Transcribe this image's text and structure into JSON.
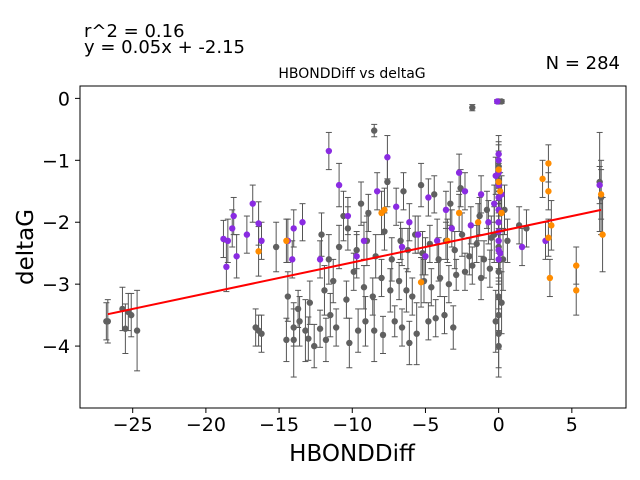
{
  "chart_data": {
    "type": "scatter",
    "title": "HBONDDiff vs deltaG",
    "xlabel": "HBONDDiff",
    "ylabel": "deltaG",
    "xlim": [
      -28.6,
      8.7
    ],
    "ylim": [
      -5.0,
      0.2
    ],
    "x_ticks": [
      -25,
      -20,
      -15,
      -10,
      -5,
      0,
      5
    ],
    "y_ticks": [
      0,
      -1,
      -2,
      -3,
      -4
    ],
    "x_tick_labels": [
      "−25",
      "−20",
      "−15",
      "−10",
      "−5",
      "0",
      "5"
    ],
    "y_tick_labels": [
      "0",
      "−1",
      "−2",
      "−3",
      "−4"
    ],
    "annotations": {
      "r2": "r^2 = 0.16",
      "equation": "y = 0.05x + -2.15",
      "n": "N = 284"
    },
    "fit_line": {
      "slope": 0.05,
      "intercept": -2.15,
      "x_range": [
        -26.7,
        7.0
      ],
      "color": "#ff0000"
    },
    "grid": false,
    "colors": {
      "grey": "#606060",
      "purple": "#8a2be2",
      "orange": "#ff8c00",
      "errorbar": "#555555"
    },
    "series": [
      {
        "color_key": "grey",
        "points": [
          [
            -26.8,
            -3.6,
            0.3
          ],
          [
            -26.7,
            -3.6,
            0.35
          ],
          [
            -25.7,
            -3.4,
            0.35
          ],
          [
            -25.3,
            -3.45,
            0.3
          ],
          [
            -25.1,
            -3.5,
            0.35
          ],
          [
            -24.7,
            -3.75,
            0.65
          ],
          [
            -25.5,
            -3.72,
            0.4
          ],
          [
            -14.0,
            -3.9,
            0.6
          ],
          [
            -16.2,
            -3.8,
            0.3
          ],
          [
            -16.4,
            -3.75,
            0.25
          ],
          [
            -14.5,
            -3.9,
            0.35
          ],
          [
            -14.0,
            -3.7,
            0.3
          ],
          [
            -13.6,
            -3.6,
            0.4
          ],
          [
            -13.2,
            -3.75,
            0.5
          ],
          [
            -13.0,
            -3.88,
            0.35
          ],
          [
            -12.6,
            -4.0,
            0.35
          ],
          [
            -12.2,
            -3.72,
            0.3
          ],
          [
            -11.8,
            -3.9,
            0.35
          ],
          [
            -11.5,
            -3.5,
            0.35
          ],
          [
            -11.1,
            -3.7,
            0.3
          ],
          [
            -10.2,
            -3.95,
            0.4
          ],
          [
            -9.6,
            -3.75,
            0.35
          ],
          [
            -9.1,
            -3.6,
            0.4
          ],
          [
            -8.5,
            -3.75,
            0.5
          ],
          [
            -7.9,
            -3.82,
            0.3
          ],
          [
            -7.1,
            -3.6,
            0.25
          ],
          [
            -6.6,
            -3.7,
            0.3
          ],
          [
            -6.1,
            -3.95,
            0.35
          ],
          [
            -5.6,
            -3.8,
            0.5
          ],
          [
            -4.8,
            -3.6,
            0.3
          ],
          [
            -4.3,
            -3.55,
            0.3
          ],
          [
            -3.7,
            -3.5,
            0.3
          ],
          [
            -3.1,
            -3.7,
            0.35
          ],
          [
            -14.4,
            -3.2,
            0.4
          ],
          [
            -13.7,
            -3.4,
            0.3
          ],
          [
            -12.9,
            -3.3,
            0.35
          ],
          [
            -11.9,
            -3.1,
            0.4
          ],
          [
            -11.3,
            -2.95,
            0.35
          ],
          [
            -10.4,
            -3.25,
            0.3
          ],
          [
            -9.9,
            -2.8,
            0.3
          ],
          [
            -9.2,
            -3.05,
            0.35
          ],
          [
            -8.6,
            -3.2,
            0.3
          ],
          [
            -8.0,
            -2.9,
            0.3
          ],
          [
            -7.4,
            -3.1,
            0.35
          ],
          [
            -6.8,
            -2.95,
            0.3
          ],
          [
            -6.3,
            -3.1,
            0.35
          ],
          [
            -5.9,
            -3.2,
            0.3
          ],
          [
            -5.1,
            -2.95,
            0.35
          ],
          [
            -4.6,
            -3.05,
            0.3
          ],
          [
            -4.0,
            -2.9,
            0.3
          ],
          [
            -3.4,
            -3.0,
            0.3
          ],
          [
            -2.9,
            -2.85,
            0.25
          ],
          [
            -2.3,
            -2.8,
            0.3
          ],
          [
            -1.8,
            -2.7,
            0.3
          ],
          [
            -1.2,
            -2.9,
            0.35
          ],
          [
            -0.6,
            -2.75,
            0.3
          ],
          [
            -12.1,
            -2.2,
            0.35
          ],
          [
            -11.6,
            -2.6,
            0.4
          ],
          [
            -10.9,
            -2.4,
            0.35
          ],
          [
            -10.3,
            -2.1,
            0.35
          ],
          [
            -9.7,
            -2.45,
            0.3
          ],
          [
            -9.0,
            -2.3,
            0.4
          ],
          [
            -8.4,
            -2.55,
            0.35
          ],
          [
            -7.8,
            -2.15,
            0.3
          ],
          [
            -7.3,
            -2.6,
            0.35
          ],
          [
            -6.7,
            -2.3,
            0.3
          ],
          [
            -6.2,
            -2.45,
            0.35
          ],
          [
            -5.7,
            -2.2,
            0.3
          ],
          [
            -5.2,
            -2.5,
            0.35
          ],
          [
            -4.7,
            -2.35,
            0.3
          ],
          [
            -4.1,
            -2.6,
            0.35
          ],
          [
            -3.6,
            -2.3,
            0.3
          ],
          [
            -3.0,
            -2.45,
            0.3
          ],
          [
            -2.5,
            -2.2,
            0.35
          ],
          [
            -2.0,
            -2.55,
            0.3
          ],
          [
            -1.5,
            -2.35,
            0.3
          ],
          [
            -1.0,
            -2.6,
            0.3
          ],
          [
            -0.5,
            -2.25,
            0.35
          ],
          [
            -7.6,
            -1.35,
            0.4
          ],
          [
            -6.5,
            -1.5,
            0.3
          ],
          [
            -5.3,
            -1.4,
            0.35
          ],
          [
            -4.4,
            -1.55,
            0.3
          ],
          [
            -3.3,
            -1.7,
            0.35
          ],
          [
            -2.6,
            -1.45,
            0.3
          ],
          [
            -9.4,
            -1.7,
            0.35
          ],
          [
            -8.9,
            -1.85,
            0.3
          ],
          [
            -10.6,
            -1.9,
            0.4
          ],
          [
            -1.8,
            -0.15,
            0.05
          ],
          [
            -8.5,
            -0.52,
            0.1
          ],
          [
            0.0,
            -0.05,
            0.03
          ],
          [
            0.2,
            -0.05,
            0.03
          ],
          [
            -1.3,
            -1.9,
            0.3
          ],
          [
            -0.8,
            -1.8,
            0.3
          ],
          [
            0.0,
            -1.1,
            0.35
          ],
          [
            0.0,
            -1.6,
            0.4
          ],
          [
            0.0,
            -2.0,
            0.5
          ],
          [
            0.0,
            -2.4,
            0.6
          ],
          [
            0.0,
            -2.8,
            0.6
          ],
          [
            0.0,
            -3.2,
            0.55
          ],
          [
            0.0,
            -3.5,
            0.55
          ],
          [
            0.0,
            -3.8,
            0.55
          ],
          [
            0.0,
            -4.0,
            0.5
          ],
          [
            -0.2,
            -3.6,
            0.5
          ],
          [
            0.2,
            -3.3,
            0.5
          ],
          [
            0.3,
            -2.6,
            0.5
          ],
          [
            -0.3,
            -2.2,
            0.45
          ],
          [
            0.4,
            -1.8,
            0.4
          ],
          [
            0.6,
            -2.3,
            0.35
          ],
          [
            1.4,
            -2.05,
            0.3
          ],
          [
            1.9,
            -2.1,
            0.3
          ],
          [
            6.9,
            -1.35,
            0.8
          ],
          [
            7.0,
            -1.6,
            0.6
          ],
          [
            -16.6,
            -3.7,
            0.3
          ],
          [
            -15.2,
            -2.4,
            0.4
          ]
        ]
      },
      {
        "color_key": "purple",
        "points": [
          [
            -18.8,
            -2.27,
            0.3
          ],
          [
            -18.5,
            -2.3,
            0.35
          ],
          [
            -18.2,
            -2.1,
            0.3
          ],
          [
            -18.6,
            -2.72,
            0.4
          ],
          [
            -18.1,
            -1.9,
            0.3
          ],
          [
            -17.9,
            -2.55,
            0.35
          ],
          [
            -16.8,
            -1.7,
            0.3
          ],
          [
            -16.4,
            -2.02,
            0.35
          ],
          [
            -17.2,
            -2.2,
            0.3
          ],
          [
            -14.4,
            -2.3,
            0.35
          ],
          [
            -14.1,
            -2.6,
            0.3
          ],
          [
            -13.4,
            -2.0,
            0.3
          ],
          [
            -11.6,
            -0.85,
            0.3
          ],
          [
            -10.9,
            -1.4,
            0.35
          ],
          [
            -10.3,
            -1.9,
            0.3
          ],
          [
            -9.7,
            -2.55,
            0.35
          ],
          [
            -8.3,
            -1.5,
            0.3
          ],
          [
            -7.6,
            -0.95,
            0.35
          ],
          [
            -7.0,
            -1.75,
            0.3
          ],
          [
            -6.1,
            -2.0,
            0.3
          ],
          [
            -5.5,
            -2.2,
            0.3
          ],
          [
            -4.8,
            -1.6,
            0.3
          ],
          [
            -4.2,
            -2.3,
            0.35
          ],
          [
            -3.6,
            -1.8,
            0.3
          ],
          [
            -3.2,
            -2.1,
            0.3
          ],
          [
            -2.7,
            -1.2,
            0.3
          ],
          [
            -2.3,
            -1.5,
            0.3
          ],
          [
            -1.9,
            -2.05,
            0.3
          ],
          [
            -1.2,
            -1.55,
            0.3
          ],
          [
            -0.7,
            -2.0,
            0.35
          ],
          [
            -0.3,
            -1.7,
            0.3
          ],
          [
            -0.1,
            -0.05,
            0.03
          ],
          [
            0.0,
            -0.9,
            0.3
          ],
          [
            0.0,
            -1.0,
            0.3
          ],
          [
            0.0,
            -1.2,
            0.3
          ],
          [
            0.0,
            -1.4,
            0.3
          ],
          [
            0.0,
            -1.6,
            0.3
          ],
          [
            0.0,
            -1.8,
            0.3
          ],
          [
            0.0,
            -2.0,
            0.3
          ],
          [
            0.0,
            -2.15,
            0.3
          ],
          [
            0.0,
            -2.3,
            0.3
          ],
          [
            0.0,
            -2.45,
            0.3
          ],
          [
            0.0,
            -2.6,
            0.3
          ],
          [
            0.1,
            -2.5,
            0.3
          ],
          [
            0.2,
            -1.55,
            0.3
          ],
          [
            -0.2,
            -1.25,
            0.3
          ],
          [
            -5.0,
            -2.55,
            0.3
          ],
          [
            -9.2,
            -2.3,
            0.3
          ],
          [
            -6.6,
            -2.4,
            0.3
          ],
          [
            1.6,
            -2.4,
            0.3
          ],
          [
            3.2,
            -2.3,
            0.3
          ],
          [
            6.9,
            -1.4,
            0.3
          ],
          [
            -16.2,
            -2.3,
            0.3
          ],
          [
            -14.0,
            -2.1,
            0.3
          ],
          [
            -12.2,
            -2.6,
            0.3
          ]
        ]
      },
      {
        "color_key": "orange",
        "points": [
          [
            -16.4,
            -2.47,
            0.4
          ],
          [
            -14.5,
            -2.3,
            0.35
          ],
          [
            -8.0,
            -1.85,
            0.35
          ],
          [
            -7.8,
            -1.8,
            0.35
          ],
          [
            -5.3,
            -2.97,
            0.4
          ],
          [
            -3.5,
            -2.3,
            0.35
          ],
          [
            -2.7,
            -1.85,
            0.3
          ],
          [
            -1.4,
            -2.0,
            0.3
          ],
          [
            0.0,
            -1.15,
            0.3
          ],
          [
            0.0,
            -1.35,
            0.3
          ],
          [
            0.1,
            -1.5,
            0.3
          ],
          [
            0.2,
            -1.85,
            0.3
          ],
          [
            3.0,
            -1.3,
            0.3
          ],
          [
            3.4,
            -1.05,
            0.3
          ],
          [
            3.4,
            -1.5,
            0.3
          ],
          [
            3.4,
            -2.25,
            0.3
          ],
          [
            3.5,
            -2.9,
            0.3
          ],
          [
            3.6,
            -2.05,
            0.4
          ],
          [
            5.3,
            -2.7,
            0.3
          ],
          [
            5.3,
            -3.1,
            0.4
          ],
          [
            7.1,
            -2.2,
            0.6
          ],
          [
            7.0,
            -1.55,
            0.4
          ]
        ]
      }
    ]
  }
}
